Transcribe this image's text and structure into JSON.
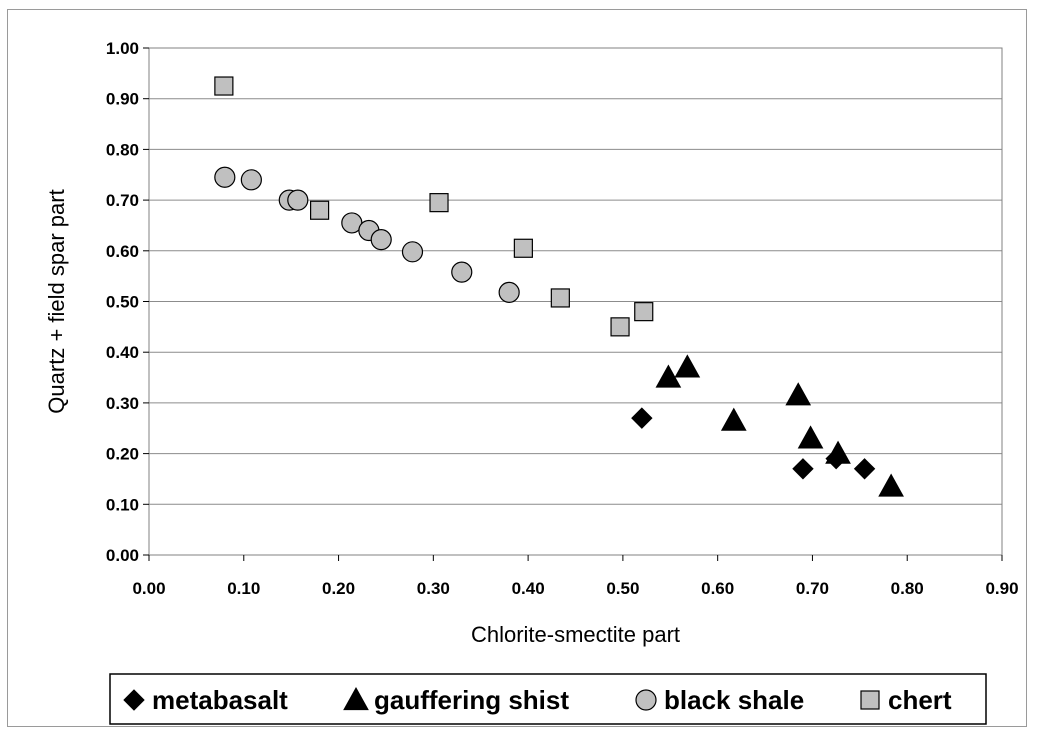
{
  "chart_data": {
    "type": "scatter",
    "xlabel": "Chlorite-smectite part",
    "ylabel": "Quartz + field spar  part",
    "xlim": [
      0,
      0.9
    ],
    "ylim": [
      0,
      1.0
    ],
    "x_ticks": [
      "0.00",
      "0.10",
      "0.20",
      "0.30",
      "0.40",
      "0.50",
      "0.60",
      "0.70",
      "0.80",
      "0.90"
    ],
    "y_ticks": [
      "0.00",
      "0.10",
      "0.20",
      "0.30",
      "0.40",
      "0.50",
      "0.60",
      "0.70",
      "0.80",
      "0.90",
      "1.00"
    ],
    "grid": "horizontal",
    "legend_position": "bottom",
    "series": [
      {
        "name": "metabasalt",
        "marker": "diamond",
        "color": "#000000",
        "points": [
          [
            0.52,
            0.27
          ],
          [
            0.69,
            0.17
          ],
          [
            0.725,
            0.19
          ],
          [
            0.755,
            0.17
          ]
        ]
      },
      {
        "name": "gauffering shist",
        "marker": "triangle",
        "color": "#000000",
        "points": [
          [
            0.548,
            0.35
          ],
          [
            0.568,
            0.37
          ],
          [
            0.617,
            0.265
          ],
          [
            0.685,
            0.315
          ],
          [
            0.698,
            0.23
          ],
          [
            0.727,
            0.2
          ],
          [
            0.783,
            0.135
          ]
        ]
      },
      {
        "name": "black shale",
        "marker": "circle",
        "color": "#c0c0c0",
        "points": [
          [
            0.08,
            0.745
          ],
          [
            0.108,
            0.74
          ],
          [
            0.148,
            0.7
          ],
          [
            0.157,
            0.7
          ],
          [
            0.214,
            0.655
          ],
          [
            0.232,
            0.64
          ],
          [
            0.245,
            0.622
          ],
          [
            0.278,
            0.598
          ],
          [
            0.33,
            0.558
          ],
          [
            0.38,
            0.518
          ]
        ]
      },
      {
        "name": "chert",
        "marker": "square",
        "color": "#c0c0c0",
        "points": [
          [
            0.079,
            0.925
          ],
          [
            0.18,
            0.68
          ],
          [
            0.306,
            0.695
          ],
          [
            0.395,
            0.605
          ],
          [
            0.434,
            0.507
          ],
          [
            0.497,
            0.45
          ],
          [
            0.522,
            0.48
          ]
        ]
      }
    ]
  }
}
